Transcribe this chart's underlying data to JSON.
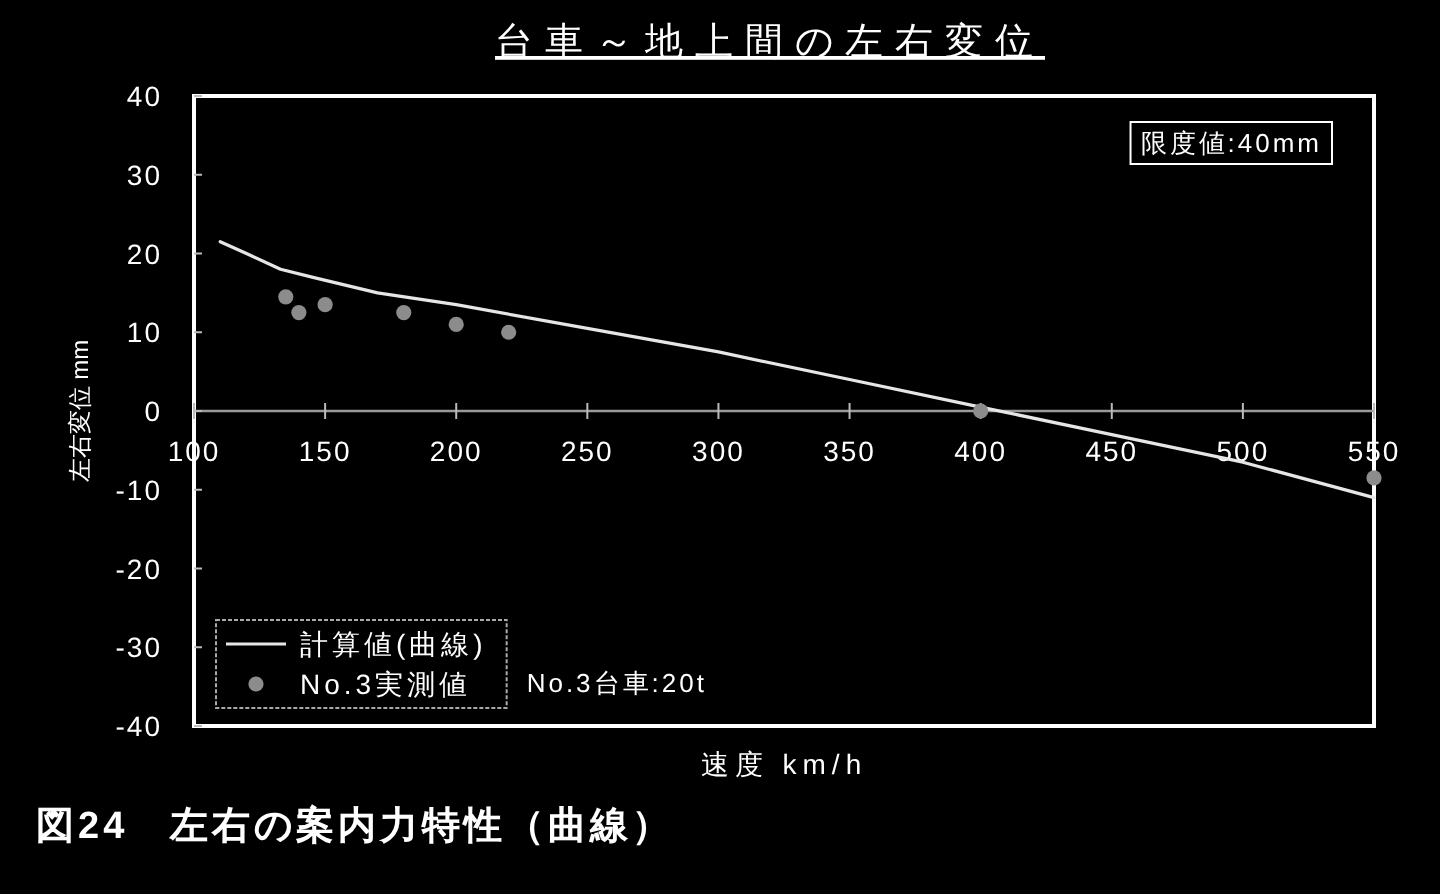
{
  "chart_data": {
    "type": "line",
    "title": "台車～地上間の左右変位",
    "xlabel": "速度 km/h",
    "ylabel": "左右変位 mm",
    "annotations": [
      "限度値:40mm",
      "No.3台車:20t",
      "図24　左右の案内力特性（曲線）"
    ],
    "series": [
      {
        "name": "計算値(曲線)",
        "color": "#e6e6e6",
        "x": [
          110,
          120,
          133,
          145,
          170,
          200,
          250,
          300,
          350,
          400,
          450,
          500,
          550
        ],
        "values": [
          21.5,
          20,
          18,
          17,
          15,
          13.5,
          10.5,
          7.5,
          4,
          0.5,
          -3,
          -6.5,
          -11
        ]
      },
      {
        "name": "No.3実測値",
        "type": "scatter",
        "color": "#8c8c8c",
        "marker": "circle",
        "x": [
          135,
          140,
          150,
          180,
          200,
          220,
          400,
          550
        ],
        "values": [
          14.5,
          12.5,
          13.5,
          12.5,
          11,
          10,
          0,
          -8.5
        ]
      }
    ],
    "xlim": [
      100,
      550
    ],
    "xticks": [
      100,
      150,
      200,
      250,
      300,
      350,
      400,
      450,
      500,
      550
    ],
    "ylim": [
      -40,
      40
    ],
    "yticks": [
      -40,
      -30,
      -20,
      -10,
      0,
      10,
      20,
      30,
      40
    ],
    "grid": false,
    "legend": "bottom left"
  }
}
